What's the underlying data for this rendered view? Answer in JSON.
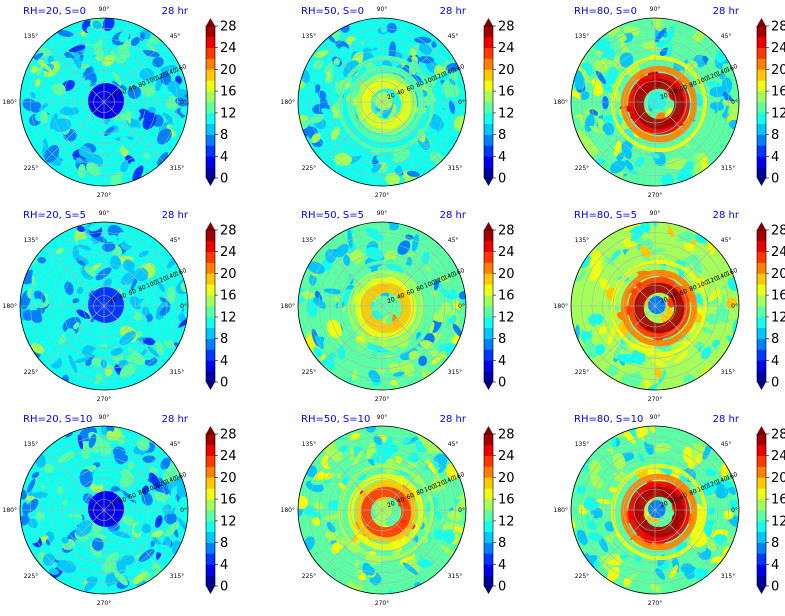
{
  "figure": {
    "panels_label": "polar contour panels"
  },
  "chart_data": {
    "type": "heatmap",
    "projection": "polar",
    "colorbar": {
      "ticks": [
        0,
        4,
        8,
        12,
        16,
        20,
        24,
        28
      ],
      "levels": [
        0,
        2,
        4,
        6,
        8,
        10,
        12,
        14,
        16,
        18,
        20,
        22,
        24,
        26,
        28
      ],
      "colormap": "jet",
      "extend": "both"
    },
    "theta_tick_labels": [
      "0°",
      "45°",
      "90°",
      "135°",
      "180°",
      "225°",
      "270°",
      "315°"
    ],
    "radial_tick_labels": [
      "20",
      "40",
      "60",
      "80",
      "100",
      "120",
      "140",
      "160"
    ],
    "panels": [
      {
        "title": "RH=20, S=0",
        "time": "28 hr",
        "rh": 20,
        "s": 0,
        "core_peak": 2,
        "ring_peak": null,
        "field_mean": 10
      },
      {
        "title": "RH=50, S=0",
        "time": "28 hr",
        "rh": 50,
        "s": 0,
        "core_peak": 14,
        "ring_peak": 16,
        "field_mean": 11
      },
      {
        "title": "RH=80, S=0",
        "time": "28 hr",
        "rh": 80,
        "s": 0,
        "core_peak": 10,
        "ring_peak": 28,
        "field_mean": 12
      },
      {
        "title": "RH=20, S=5",
        "time": "28 hr",
        "rh": 20,
        "s": 5,
        "core_peak": 5,
        "ring_peak": null,
        "field_mean": 10
      },
      {
        "title": "RH=50, S=5",
        "time": "28 hr",
        "rh": 50,
        "s": 5,
        "core_peak": 12,
        "ring_peak": 18,
        "field_mean": 12
      },
      {
        "title": "RH=80, S=5",
        "time": "28 hr",
        "rh": 80,
        "s": 5,
        "core_peak": 6,
        "ring_peak": 26,
        "field_mean": 14
      },
      {
        "title": "RH=20, S=10",
        "time": "28 hr",
        "rh": 20,
        "s": 10,
        "core_peak": 3,
        "ring_peak": null,
        "field_mean": 10
      },
      {
        "title": "RH=50, S=10",
        "time": "28 hr",
        "rh": 50,
        "s": 10,
        "core_peak": 14,
        "ring_peak": 22,
        "field_mean": 13
      },
      {
        "title": "RH=80, S=10",
        "time": "28 hr",
        "rh": 80,
        "s": 10,
        "core_peak": 6,
        "ring_peak": 28,
        "field_mean": 13
      }
    ]
  }
}
